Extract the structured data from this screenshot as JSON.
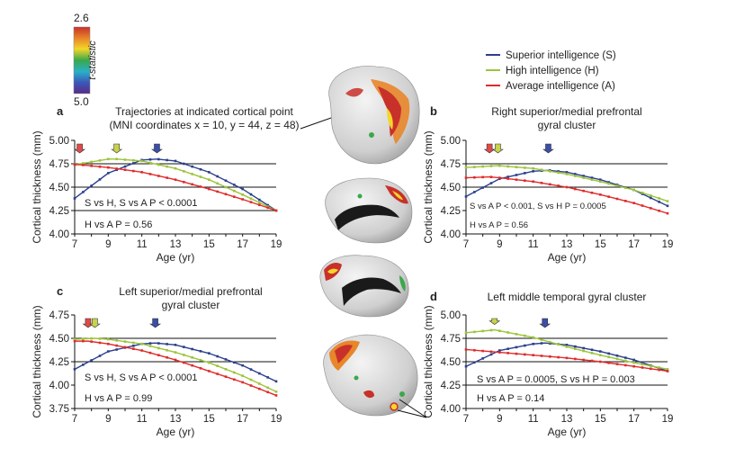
{
  "figure": {
    "colorbar": {
      "top": "2.6",
      "bottom": "5.0",
      "label": "t-statistic",
      "colors": [
        "#c8302a",
        "#e8862a",
        "#f2d62a",
        "#3aa84a",
        "#2ab0c8",
        "#3a5ab8",
        "#5a2a8a"
      ]
    },
    "legend": [
      {
        "label": "Superior intelligence (S)",
        "color": "#2b3f8c"
      },
      {
        "label": "High intelligence (H)",
        "color": "#9cc43a"
      },
      {
        "label": "Average intelligence (A)",
        "color": "#e02a2a"
      }
    ],
    "callout": {
      "line1": "Trajectories at indicated cortical point",
      "line2": "(MNI coordinates x = 10, y = 44, z = 48)"
    }
  },
  "chart_data": [
    {
      "panel": "a",
      "type": "line",
      "title": "",
      "xlabel": "Age (yr)",
      "ylabel": "Cortical thickness (mm)",
      "xlim": [
        7,
        19
      ],
      "ylim": [
        4.0,
        5.0
      ],
      "xticks": [
        "7",
        "9",
        "11",
        "13",
        "15",
        "17",
        "19"
      ],
      "yticks": [
        "4.00",
        "4.25",
        "4.50",
        "4.75",
        "5.00"
      ],
      "hlines": [
        4.25,
        4.5,
        4.75
      ],
      "stats": [
        "S vs H, S vs A P < 0.0001",
        "H vs A P = 0.56"
      ],
      "peaks": {
        "A": 7.3,
        "H": 9.5,
        "S": 11.9
      },
      "series": [
        {
          "name": "S",
          "x": [
            7,
            9,
            11,
            11.9,
            13,
            15,
            17,
            19
          ],
          "y": [
            4.38,
            4.65,
            4.79,
            4.8,
            4.78,
            4.66,
            4.48,
            4.25
          ]
        },
        {
          "name": "H",
          "x": [
            7,
            9,
            9.5,
            11,
            13,
            15,
            17,
            19
          ],
          "y": [
            4.74,
            4.8,
            4.8,
            4.78,
            4.7,
            4.58,
            4.42,
            4.25
          ]
        },
        {
          "name": "A",
          "x": [
            7,
            7.3,
            9,
            11,
            13,
            15,
            17,
            19
          ],
          "y": [
            4.74,
            4.74,
            4.71,
            4.66,
            4.58,
            4.48,
            4.37,
            4.25
          ]
        }
      ]
    },
    {
      "panel": "b",
      "type": "line",
      "title": "Right superior/medial prefrontal gyral cluster",
      "xlabel": "Age (yr)",
      "ylabel": "Cortical thickness (mm)",
      "xlim": [
        7,
        19
      ],
      "ylim": [
        4.0,
        5.0
      ],
      "xticks": [
        "7",
        "9",
        "11",
        "13",
        "15",
        "17",
        "19"
      ],
      "yticks": [
        "4.00",
        "4.25",
        "4.50",
        "4.75",
        "5.00"
      ],
      "hlines": [
        4.5,
        4.75
      ],
      "stats": [
        "S vs A P < 0.001, S vs H P = 0.0005",
        "H vs A P = 0.56"
      ],
      "peaks": {
        "A": 8.4,
        "H": 8.9,
        "S": 11.9
      },
      "series": [
        {
          "name": "S",
          "x": [
            7,
            9,
            11,
            11.9,
            13,
            15,
            17,
            19
          ],
          "y": [
            4.4,
            4.59,
            4.67,
            4.68,
            4.66,
            4.58,
            4.47,
            4.3
          ]
        },
        {
          "name": "H",
          "x": [
            7,
            8.9,
            11,
            13,
            15,
            17,
            19
          ],
          "y": [
            4.71,
            4.73,
            4.7,
            4.64,
            4.56,
            4.47,
            4.35
          ]
        },
        {
          "name": "A",
          "x": [
            7,
            8.4,
            9,
            11,
            13,
            15,
            17,
            19
          ],
          "y": [
            4.6,
            4.61,
            4.6,
            4.56,
            4.5,
            4.42,
            4.33,
            4.22
          ]
        }
      ]
    },
    {
      "panel": "c",
      "type": "line",
      "title": "Left superior/medial prefrontal gyral cluster",
      "xlabel": "Age (yr)",
      "ylabel": "Cortical thickness (mm)",
      "xlim": [
        7,
        19
      ],
      "ylim": [
        3.75,
        4.75
      ],
      "xticks": [
        "7",
        "9",
        "11",
        "13",
        "15",
        "17",
        "19"
      ],
      "yticks": [
        "3.75",
        "4.00",
        "4.25",
        "4.50",
        "4.75"
      ],
      "hlines": [
        4.25,
        4.5
      ],
      "stats": [
        "S vs H, S vs A P < 0.0001",
        "H vs A P = 0.99"
      ],
      "peaks": {
        "A": 7.8,
        "H": 8.2,
        "S": 11.8
      },
      "series": [
        {
          "name": "S",
          "x": [
            7,
            9,
            11,
            11.8,
            13,
            15,
            17,
            19
          ],
          "y": [
            4.17,
            4.36,
            4.44,
            4.45,
            4.43,
            4.34,
            4.21,
            4.04
          ]
        },
        {
          "name": "H",
          "x": [
            7,
            8.2,
            9,
            11,
            13,
            15,
            17,
            19
          ],
          "y": [
            4.49,
            4.5,
            4.49,
            4.44,
            4.35,
            4.24,
            4.1,
            3.93
          ]
        },
        {
          "name": "A",
          "x": [
            7,
            7.8,
            9,
            11,
            13,
            15,
            17,
            19
          ],
          "y": [
            4.47,
            4.47,
            4.44,
            4.37,
            4.27,
            4.15,
            4.03,
            3.89
          ]
        }
      ]
    },
    {
      "panel": "d",
      "type": "line",
      "title": "Left middle temporal gyral cluster",
      "xlabel": "Age (yr)",
      "ylabel": "Cortical thickness (mm)",
      "xlim": [
        7,
        19
      ],
      "ylim": [
        4.0,
        5.0
      ],
      "xticks": [
        "7",
        "9",
        "11",
        "13",
        "15",
        "17",
        "19"
      ],
      "yticks": [
        "4.00",
        "4.25",
        "4.50",
        "4.75",
        "5.00"
      ],
      "hlines": [
        4.25,
        4.5,
        4.75
      ],
      "stats": [
        "S vs A P = 0.0005, S vs H P = 0.003",
        "H vs A P = 0.14"
      ],
      "peaks": {
        "H": 8.7,
        "S": 11.7
      },
      "series": [
        {
          "name": "S",
          "x": [
            7,
            9,
            11,
            11.7,
            13,
            15,
            17,
            19
          ],
          "y": [
            4.45,
            4.62,
            4.69,
            4.7,
            4.68,
            4.61,
            4.52,
            4.4
          ]
        },
        {
          "name": "H",
          "x": [
            7,
            8.7,
            9,
            11,
            13,
            15,
            17,
            19
          ],
          "y": [
            4.81,
            4.84,
            4.83,
            4.76,
            4.66,
            4.57,
            4.49,
            4.42
          ]
        },
        {
          "name": "A",
          "x": [
            7,
            9,
            11,
            13,
            15,
            17,
            19
          ],
          "y": [
            4.63,
            4.6,
            4.57,
            4.54,
            4.5,
            4.45,
            4.4
          ]
        }
      ]
    }
  ]
}
